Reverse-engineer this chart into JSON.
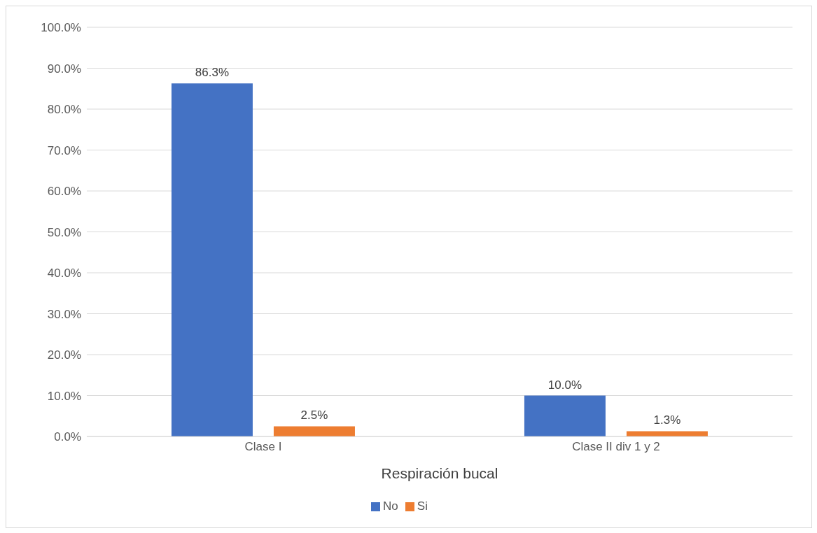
{
  "chart_data": {
    "type": "bar",
    "xlabel": "Respiración bucal",
    "categories": [
      "Clase I",
      "Clase II div 1 y 2"
    ],
    "series": [
      {
        "name": "No",
        "color": "#4472c4",
        "values": [
          86.3,
          10.0
        ],
        "value_labels": [
          "86.3%",
          "10.0%"
        ]
      },
      {
        "name": "Si",
        "color": "#ed7d31",
        "values": [
          2.5,
          1.3
        ],
        "value_labels": [
          "2.5%",
          "1.3%"
        ]
      }
    ],
    "ylim": [
      0,
      100
    ],
    "yticks": [
      {
        "value": 0,
        "label": "0.0%"
      },
      {
        "value": 10,
        "label": "10.0%"
      },
      {
        "value": 20,
        "label": "20.0%"
      },
      {
        "value": 30,
        "label": "30.0%"
      },
      {
        "value": 40,
        "label": "40.0%"
      },
      {
        "value": 50,
        "label": "50.0%"
      },
      {
        "value": 60,
        "label": "60.0%"
      },
      {
        "value": 70,
        "label": "70.0%"
      },
      {
        "value": 80,
        "label": "80.0%"
      },
      {
        "value": 90,
        "label": "90.0%"
      },
      {
        "value": 100,
        "label": "100.0%"
      }
    ],
    "grid": "y",
    "legend": "bottom"
  }
}
